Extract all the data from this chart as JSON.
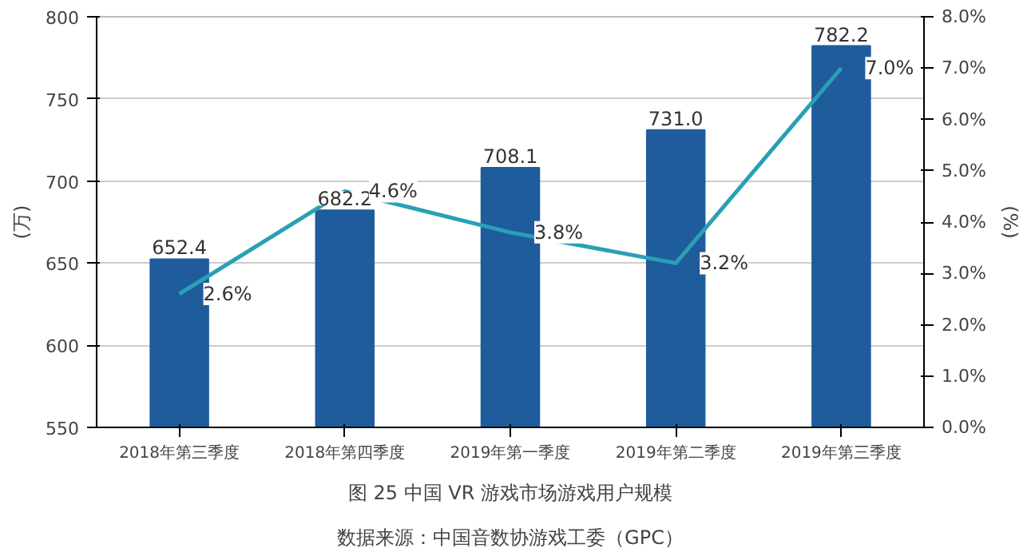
{
  "chart_data": {
    "type": "bar",
    "title": "图 25 中国 VR 游戏市场游戏用户规模",
    "categories": [
      "2018年第三季度",
      "2018年第四季度",
      "2019年第一季度",
      "2019年第二季度",
      "2019年第三季度"
    ],
    "series": [
      {
        "color": "#1f5c9c",
        "values": [
          652.4,
          682.2,
          708.1,
          731.0,
          782.2
        ],
        "value_labels": [
          "652.4",
          "682.2",
          "708.1",
          "731.0",
          "782.2"
        ]
      },
      {
        "type": "line",
        "axis": "y2",
        "color": "#2aa0b5",
        "values": [
          2.6,
          4.6,
          3.8,
          3.2,
          7.0
        ],
        "value_labels": [
          "2.6%",
          "4.6%",
          "3.8%",
          "3.2%",
          "7.0%"
        ]
      }
    ],
    "ylabel": "(万)",
    "y2label": "(%)",
    "ylim": [
      550,
      800
    ],
    "yticks": [
      550,
      600,
      650,
      700,
      750,
      800
    ],
    "y2lim": [
      0,
      8
    ],
    "y2ticks": [
      {
        "value": 0,
        "label": "0.0%"
      },
      {
        "value": 1,
        "label": "1.0%"
      },
      {
        "value": 2,
        "label": "2.0%"
      },
      {
        "value": 3,
        "label": "3.0%"
      },
      {
        "value": 4,
        "label": "4.0%"
      },
      {
        "value": 5,
        "label": "5.0%"
      },
      {
        "value": 6,
        "label": "6.0%"
      },
      {
        "value": 7,
        "label": "7.0%"
      },
      {
        "value": 8,
        "label": "8.0%"
      }
    ],
    "grid": "y",
    "marker": "none",
    "line_style": "solid",
    "annotations": [
      "数据来源：中国音数协游戏工委（GPC）"
    ]
  }
}
